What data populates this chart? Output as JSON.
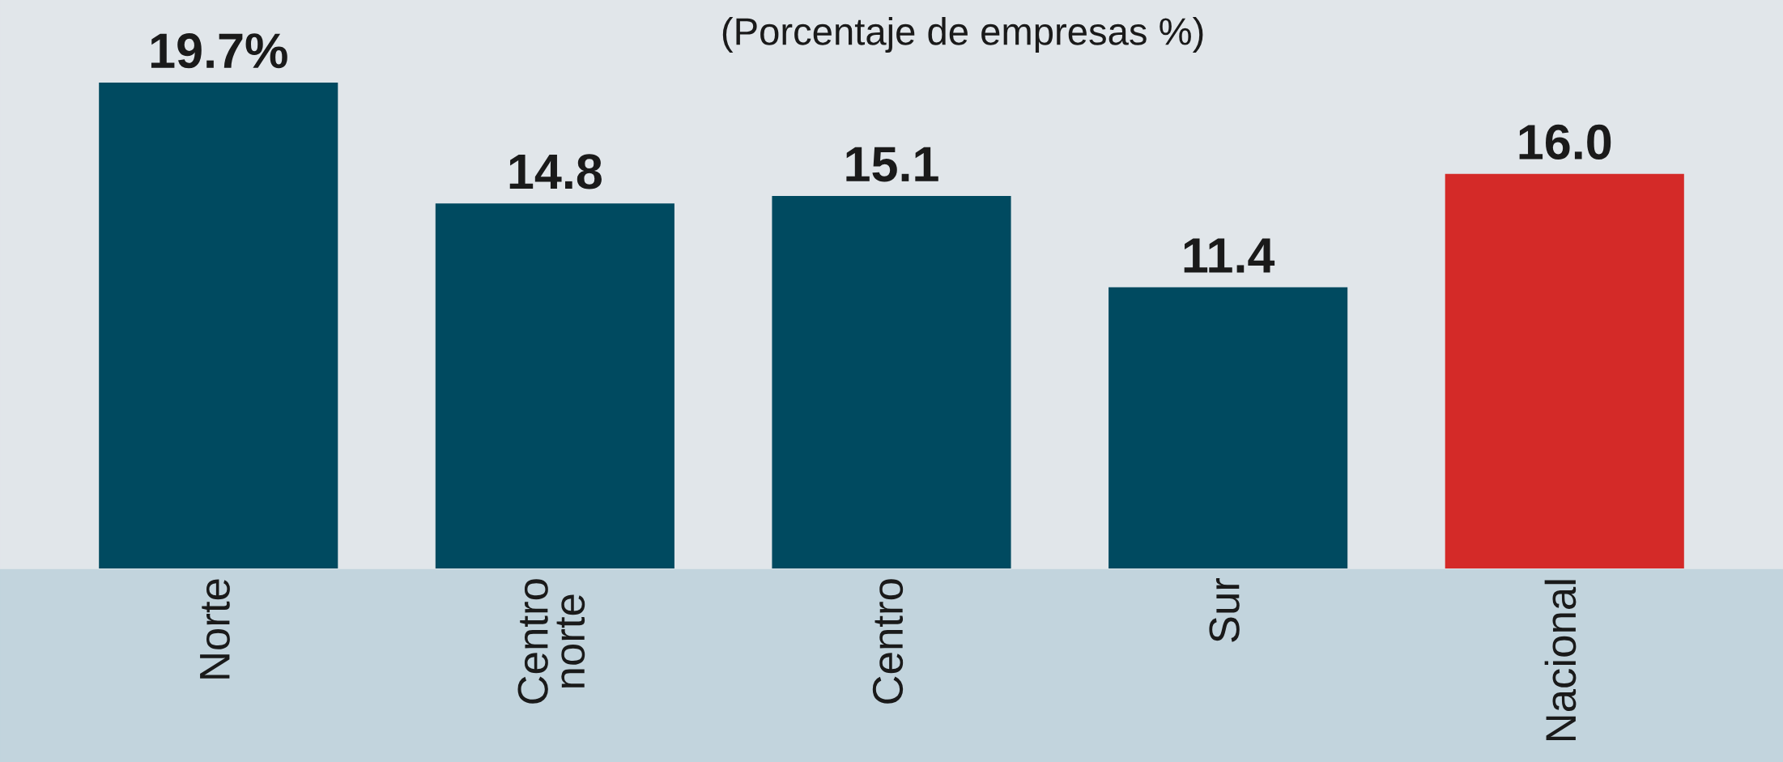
{
  "chart_data": {
    "type": "bar",
    "title": "(Porcentaje de empresas %)",
    "categories": [
      "Norte",
      "Centro\nnorte",
      "Centro",
      "Sur",
      "Nacional"
    ],
    "values": [
      19.7,
      14.8,
      15.1,
      11.4,
      16.0
    ],
    "colors": [
      "#004a60",
      "#004a60",
      "#004a60",
      "#004a60",
      "#d42a28"
    ],
    "value_labels": [
      "19.7%",
      "14.8",
      "15.1",
      "11.4",
      "16.0"
    ]
  }
}
